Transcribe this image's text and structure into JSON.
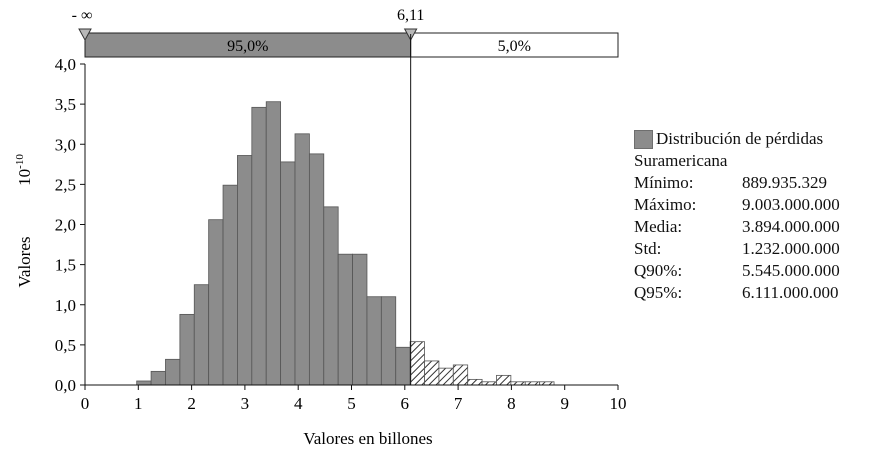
{
  "chart_data": {
    "type": "bar",
    "xlabel": "Valores en billones",
    "ylabel": "Valores",
    "y_multiplier": "10",
    "y_multiplier_exp": "-10",
    "xlim": [
      0,
      10
    ],
    "ylim": [
      0,
      4.0
    ],
    "x_ticks": [
      "0",
      "1",
      "2",
      "3",
      "4",
      "5",
      "6",
      "7",
      "8",
      "9",
      "10"
    ],
    "y_ticks": [
      "0,0",
      "0,5",
      "1,0",
      "1,5",
      "2,0",
      "2,5",
      "3,0",
      "3,5",
      "4,0"
    ],
    "bin_width": 0.27,
    "bins": [
      {
        "x": 0.97,
        "y": 0.05
      },
      {
        "x": 1.24,
        "y": 0.17
      },
      {
        "x": 1.51,
        "y": 0.32
      },
      {
        "x": 1.78,
        "y": 0.88
      },
      {
        "x": 2.05,
        "y": 1.25
      },
      {
        "x": 2.32,
        "y": 2.06
      },
      {
        "x": 2.59,
        "y": 2.49
      },
      {
        "x": 2.86,
        "y": 2.86
      },
      {
        "x": 3.13,
        "y": 3.46
      },
      {
        "x": 3.4,
        "y": 3.53
      },
      {
        "x": 3.67,
        "y": 2.78
      },
      {
        "x": 3.94,
        "y": 3.13
      },
      {
        "x": 4.21,
        "y": 2.88
      },
      {
        "x": 4.48,
        "y": 2.22
      },
      {
        "x": 4.75,
        "y": 1.63
      },
      {
        "x": 5.02,
        "y": 1.63
      },
      {
        "x": 5.29,
        "y": 1.1
      },
      {
        "x": 5.56,
        "y": 1.1
      },
      {
        "x": 5.83,
        "y": 0.47
      },
      {
        "x": 6.1,
        "y": 0.54
      },
      {
        "x": 6.37,
        "y": 0.3
      },
      {
        "x": 6.64,
        "y": 0.21
      },
      {
        "x": 6.91,
        "y": 0.25
      },
      {
        "x": 7.18,
        "y": 0.07
      },
      {
        "x": 7.45,
        "y": 0.04
      },
      {
        "x": 7.72,
        "y": 0.12
      },
      {
        "x": 7.99,
        "y": 0.04
      },
      {
        "x": 8.26,
        "y": 0.04
      },
      {
        "x": 8.53,
        "y": 0.04
      }
    ],
    "threshold": 6.11,
    "band": {
      "left_marker": "- ∞",
      "right_marker": "6,11",
      "left_pct": "95,0%",
      "right_pct": "5,0%"
    },
    "legend": {
      "series_line1": "Distribución de pérdidas",
      "series_line2": "Suramericana",
      "stats": [
        {
          "label": "Mínimo:",
          "value": "889.935.329"
        },
        {
          "label": "Máximo:",
          "value": "9.003.000.000"
        },
        {
          "label": "Media:",
          "value": "3.894.000.000"
        },
        {
          "label": "Std:",
          "value": "1.232.000.000"
        },
        {
          "label": "Q90%:",
          "value": "5.545.000.000"
        },
        {
          "label": "Q95%:",
          "value": "6.111.000.000"
        }
      ]
    },
    "colors": {
      "bar_fill": "#8c8c8c",
      "bar_stroke": "#555555",
      "band_left": "#8c8c8c",
      "band_right": "#ffffff",
      "tail_hatch": "#333333"
    }
  }
}
